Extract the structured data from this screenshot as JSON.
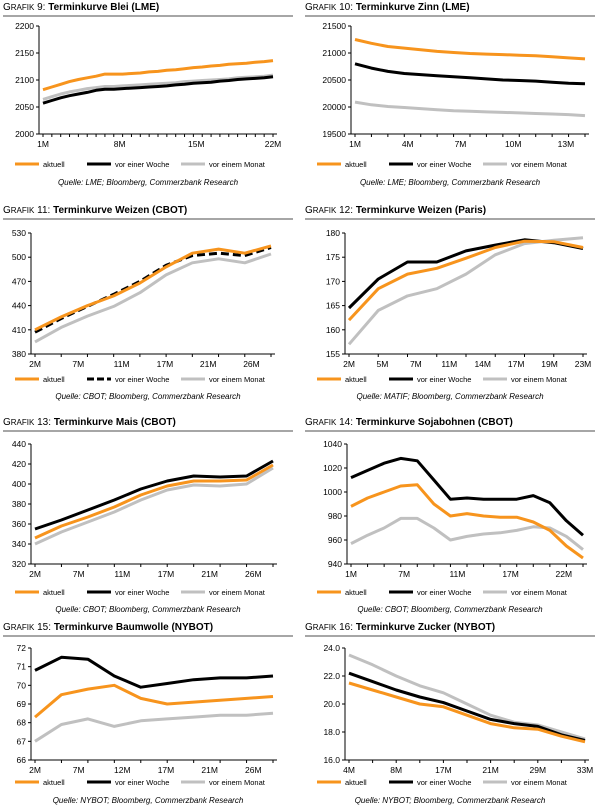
{
  "colors": {
    "aktuell": "#f7941d",
    "woche": "#000000",
    "monat": "#c0c0c0"
  },
  "charts": [
    {
      "grafik_a": "G",
      "grafik_b": "RAFIK",
      "num": "9:",
      "name": "Terminkurve Blei (LME)",
      "source": "Quelle: LME; Bloomberg, Commerzbank Research",
      "chart_data": {
        "type": "line",
        "ylim": [
          2000,
          2200
        ],
        "yticks": [
          2000,
          2050,
          2100,
          2150,
          2200
        ],
        "xcount": 27,
        "xtick_index": [
          0,
          7,
          14,
          21
        ],
        "xtick_labels": [
          "1M",
          "8M",
          "15M",
          "22M"
        ],
        "series": [
          {
            "name": "aktuell",
            "style": "solid",
            "color": "#f7941d",
            "values": [
              2082,
              2087,
              2092,
              2097,
              2101,
              2104,
              2107,
              2111,
              2111,
              2111,
              2112,
              2113,
              2115,
              2116,
              2118,
              2119,
              2121,
              2123,
              2124,
              2126,
              2127,
              2129,
              2130,
              2131,
              2133,
              2134,
              2136
            ]
          },
          {
            "name": "vor einer Woche",
            "style": "solid",
            "color": "#000000",
            "values": [
              2057,
              2062,
              2067,
              2071,
              2074,
              2077,
              2081,
              2083,
              2083,
              2084,
              2085,
              2086,
              2087,
              2088,
              2089,
              2091,
              2092,
              2094,
              2095,
              2096,
              2098,
              2099,
              2101,
              2102,
              2103,
              2104,
              2106
            ]
          },
          {
            "name": "vor einem Monat",
            "style": "solid",
            "color": "#c0c0c0",
            "values": [
              2064,
              2069,
              2074,
              2078,
              2081,
              2084,
              2086,
              2088,
              2088,
              2089,
              2090,
              2091,
              2092,
              2093,
              2094,
              2095,
              2097,
              2098,
              2099,
              2100,
              2101,
              2102,
              2104,
              2105,
              2106,
              2107,
              2109
            ]
          }
        ]
      }
    },
    {
      "grafik_a": "G",
      "grafik_b": "RAFIK",
      "num": "10:",
      "name": "Terminkurve Zinn (LME)",
      "source": "Quelle: LME; Bloomberg, Commerzbank Research",
      "chart_data": {
        "type": "line",
        "ylim": [
          19500,
          21500
        ],
        "yticks": [
          19500,
          20000,
          20500,
          21000,
          21500
        ],
        "xcount": 15,
        "xtick_index": [
          0,
          3,
          6,
          9,
          12
        ],
        "xtick_labels": [
          "1M",
          "4M",
          "7M",
          "10M",
          "13M"
        ],
        "series": [
          {
            "name": "aktuell",
            "style": "solid",
            "color": "#f7941d",
            "values": [
              21250,
              21180,
              21120,
              21090,
              21060,
              21030,
              21010,
              20990,
              20980,
              20970,
              20960,
              20950,
              20930,
              20910,
              20890
            ]
          },
          {
            "name": "vor einer Woche",
            "style": "solid",
            "color": "#000000",
            "values": [
              20800,
              20720,
              20660,
              20620,
              20600,
              20580,
              20560,
              20540,
              20520,
              20500,
              20490,
              20480,
              20460,
              20440,
              20430
            ]
          },
          {
            "name": "vor einem Monat",
            "style": "solid",
            "color": "#c0c0c0",
            "values": [
              20090,
              20040,
              20010,
              19990,
              19970,
              19950,
              19930,
              19920,
              19910,
              19900,
              19890,
              19880,
              19870,
              19860,
              19840
            ]
          }
        ]
      }
    },
    {
      "grafik_a": "G",
      "grafik_b": "RAFIK",
      "num": "11:",
      "name": "Terminkurve Weizen (CBOT)",
      "source": "Quelle: CBOT; Bloomberg, Commerzbank Research",
      "chart_data": {
        "type": "line",
        "ylim": [
          380,
          530
        ],
        "yticks": [
          380,
          410,
          440,
          470,
          500,
          530
        ],
        "xcount": 13,
        "xtick_index": [
          0,
          2,
          4,
          6,
          8,
          10
        ],
        "xtick_labels": [
          "2M",
          "7M",
          "11M",
          "17M",
          "21M",
          "26M"
        ],
        "x_extra_ticks": 0,
        "series": [
          {
            "name": "aktuell",
            "style": "solid",
            "color": "#f7941d",
            "values": [
              410,
              426,
              440,
              452,
              468,
              488,
              505,
              510,
              505,
              514
            ]
          },
          {
            "name": "vor einer Woche",
            "style": "dashed",
            "color": "#000000",
            "values": [
              407,
              424,
              439,
              454,
              470,
              490,
              502,
              505,
              502,
              512
            ]
          },
          {
            "name": "vor einem Monat",
            "style": "solid",
            "color": "#c0c0c0",
            "values": [
              395,
              413,
              427,
              439,
              456,
              478,
              493,
              498,
              493,
              504
            ]
          }
        ]
      }
    },
    {
      "grafik_a": "G",
      "grafik_b": "RAFIK",
      "num": "12:",
      "name": "Terminkurve Weizen (Paris)",
      "source": "Quelle: MATIF; Bloomberg, Commerzbank Research",
      "chart_data": {
        "type": "line",
        "ylim": [
          155,
          180
        ],
        "yticks": [
          155,
          160,
          165,
          170,
          175,
          180
        ],
        "xcount": 9,
        "xtick_index": [
          0,
          1,
          2,
          3,
          4,
          5,
          6,
          7
        ],
        "xtick_labels": [
          "2M",
          "5M",
          "7M",
          "11M",
          "14M",
          "17M",
          "19M",
          "23M"
        ],
        "series": [
          {
            "name": "aktuell",
            "style": "solid",
            "color": "#f7941d",
            "values": [
              162,
              168.5,
              171.5,
              172.7,
              174.8,
              177,
              178.3,
              178.2,
              177
            ]
          },
          {
            "name": "vor einer Woche",
            "style": "solid",
            "color": "#000000",
            "values": [
              164.5,
              170.5,
              174,
              174,
              176.3,
              177.5,
              178.6,
              178,
              176.8
            ]
          },
          {
            "name": "vor einem Monat",
            "style": "solid",
            "color": "#c0c0c0",
            "values": [
              157,
              164,
              167,
              168.5,
              171.5,
              175.5,
              177.8,
              178.5,
              179
            ]
          }
        ]
      }
    },
    {
      "grafik_a": "G",
      "grafik_b": "RAFIK",
      "num": "13:",
      "name": "Terminkurve Mais (CBOT)",
      "source": "Quelle: CBOT; Bloomberg, Commerzbank Research",
      "chart_data": {
        "type": "line",
        "ylim": [
          320,
          440
        ],
        "yticks": [
          320,
          340,
          360,
          380,
          400,
          420,
          440
        ],
        "xcount": 13,
        "xtick_index": [
          0,
          2,
          4,
          6,
          8,
          10
        ],
        "xtick_labels": [
          "2M",
          "7M",
          "11M",
          "17M",
          "21M",
          "26M"
        ],
        "series": [
          {
            "name": "aktuell",
            "style": "solid",
            "color": "#f7941d",
            "values": [
              346,
              358,
              367,
              377,
              389,
              398,
              403,
              403,
              404,
              419
            ]
          },
          {
            "name": "vor einer Woche",
            "style": "solid",
            "color": "#000000",
            "values": [
              355,
              364,
              374,
              384,
              395,
              403,
              408,
              407,
              408,
              423
            ]
          },
          {
            "name": "vor einem Monat",
            "style": "solid",
            "color": "#c0c0c0",
            "values": [
              340,
              352,
              362,
              372,
              384,
              394,
              399,
              398,
              400,
              416
            ]
          }
        ]
      }
    },
    {
      "grafik_a": "G",
      "grafik_b": "RAFIK",
      "num": "14:",
      "name": "Terminkurve Sojabohnen (CBOT)",
      "source": "Quelle: CBOT; Bloomberg, Commerzbank Research",
      "chart_data": {
        "type": "line",
        "ylim": [
          940,
          1040
        ],
        "yticks": [
          940,
          960,
          980,
          1000,
          1020,
          1040
        ],
        "xcount": 15,
        "xtick_index": [
          0,
          3,
          6,
          9,
          12
        ],
        "xtick_labels": [
          "1M",
          "7M",
          "11M",
          "17M",
          "22M"
        ],
        "series": [
          {
            "name": "aktuell",
            "style": "solid",
            "color": "#f7941d",
            "values": [
              988,
              995,
              1000,
              1005,
              1006,
              990,
              980,
              982,
              980,
              979,
              979,
              975,
              968,
              955,
              945
            ]
          },
          {
            "name": "vor einer Woche",
            "style": "solid",
            "color": "#000000",
            "values": [
              1012,
              1018,
              1024,
              1028,
              1026,
              1010,
              994,
              995,
              994,
              994,
              994,
              997,
              991,
              976,
              964
            ]
          },
          {
            "name": "vor einem Monat",
            "style": "solid",
            "color": "#c0c0c0",
            "values": [
              957,
              964,
              970,
              978,
              978,
              970,
              960,
              963,
              965,
              966,
              968,
              971,
              970,
              963,
              952
            ]
          }
        ]
      }
    },
    {
      "grafik_a": "G",
      "grafik_b": "RAFIK",
      "num": "15:",
      "name": "Terminkurve Baumwolle (NYBOT)",
      "source": "Quelle: NYBOT; Bloomberg, Commerzbank Research",
      "chart_data": {
        "type": "line",
        "ylim": [
          66,
          72
        ],
        "yticks": [
          66,
          67,
          68,
          69,
          70,
          71,
          72
        ],
        "xcount": 13,
        "xtick_index": [
          0,
          2,
          4,
          6,
          8,
          10
        ],
        "xtick_labels": [
          "2M",
          "7M",
          "12M",
          "17M",
          "21M",
          "26M"
        ],
        "series": [
          {
            "name": "aktuell",
            "style": "solid",
            "color": "#f7941d",
            "values": [
              68.3,
              69.5,
              69.8,
              70,
              69.3,
              69,
              69.1,
              69.2,
              69.3,
              69.4
            ]
          },
          {
            "name": "vor einer Woche",
            "style": "solid",
            "color": "#000000",
            "values": [
              70.8,
              71.5,
              71.4,
              70.5,
              69.9,
              70.1,
              70.3,
              70.4,
              70.4,
              70.5
            ]
          },
          {
            "name": "vor einem Monat",
            "style": "solid",
            "color": "#c0c0c0",
            "values": [
              67,
              67.9,
              68.2,
              67.8,
              68.1,
              68.2,
              68.3,
              68.4,
              68.4,
              68.5
            ]
          }
        ]
      }
    },
    {
      "grafik_a": "G",
      "grafik_b": "RAFIK",
      "num": "16:",
      "name": "Terminkurve Zucker (NYBOT)",
      "source": "Quelle: NYBOT; Bloomberg, Commerzbank Research",
      "chart_data": {
        "type": "line",
        "ylim": [
          16,
          24
        ],
        "yticks": [
          16.0,
          18.0,
          20.0,
          22.0,
          24.0
        ],
        "ytick_labels": [
          "16.0",
          "18.0",
          "20.0",
          "22.0",
          "24.0"
        ],
        "xcount": 13,
        "xtick_index": [
          0,
          2,
          4,
          6,
          8,
          10
        ],
        "xtick_labels": [
          "4M",
          "8M",
          "17M",
          "21M",
          "29M",
          "33M"
        ],
        "series": [
          {
            "name": "aktuell",
            "style": "solid",
            "color": "#f7941d",
            "values": [
              21.5,
              21.0,
              20.5,
              20.0,
              19.8,
              19.2,
              18.6,
              18.3,
              18.2,
              17.7,
              17.3
            ]
          },
          {
            "name": "vor einer Woche",
            "style": "solid",
            "color": "#000000",
            "values": [
              22.2,
              21.6,
              21.0,
              20.5,
              20.1,
              19.5,
              18.9,
              18.6,
              18.4,
              17.8,
              17.4
            ]
          },
          {
            "name": "vor einem Monat",
            "style": "solid",
            "color": "#c0c0c0",
            "values": [
              23.5,
              22.8,
              22.0,
              21.3,
              20.8,
              20.0,
              19.2,
              18.7,
              18.5,
              18.0,
              17.5
            ]
          }
        ]
      }
    }
  ],
  "legend": {
    "aktuell": "aktuell",
    "woche": "vor einer Woche",
    "monat": "vor einem Monat"
  }
}
